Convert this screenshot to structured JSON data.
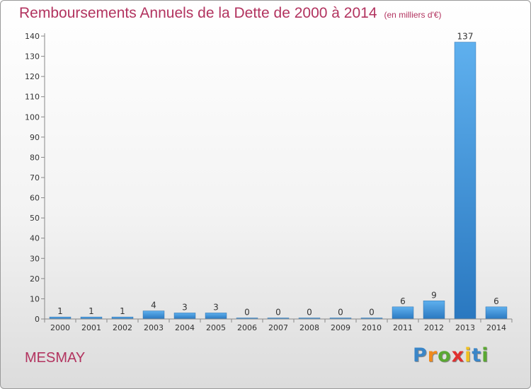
{
  "header": {
    "title": "Remboursements Annuels de la Dette de 2000 à 2014",
    "subtitle": "(en milliers d'€)"
  },
  "footer": {
    "commune": "MESMAY",
    "logo_letters": [
      {
        "char": "P",
        "color": "#3a86c8"
      },
      {
        "char": "r",
        "color": "#f08a1c"
      },
      {
        "char": "o",
        "color": "#5aa832"
      },
      {
        "char": "x",
        "color": "#e03030"
      },
      {
        "char": "i",
        "color": "#f0c020"
      },
      {
        "char": "t",
        "color": "#3a86c8"
      },
      {
        "char": "i",
        "color": "#5aa832"
      }
    ]
  },
  "chart_data": {
    "type": "bar",
    "categories": [
      "2000",
      "2001",
      "2002",
      "2003",
      "2004",
      "2005",
      "2006",
      "2007",
      "2008",
      "2009",
      "2010",
      "2011",
      "2012",
      "2013",
      "2014"
    ],
    "values": [
      1,
      1,
      1,
      4,
      3,
      3,
      0,
      0,
      0,
      0,
      0,
      6,
      9,
      137,
      6
    ],
    "ylim": [
      0,
      140
    ],
    "yticks": [
      0,
      10,
      20,
      30,
      40,
      50,
      60,
      70,
      80,
      90,
      100,
      110,
      120,
      130,
      140
    ],
    "grid": false,
    "bar_color": "#3d8fd6"
  }
}
